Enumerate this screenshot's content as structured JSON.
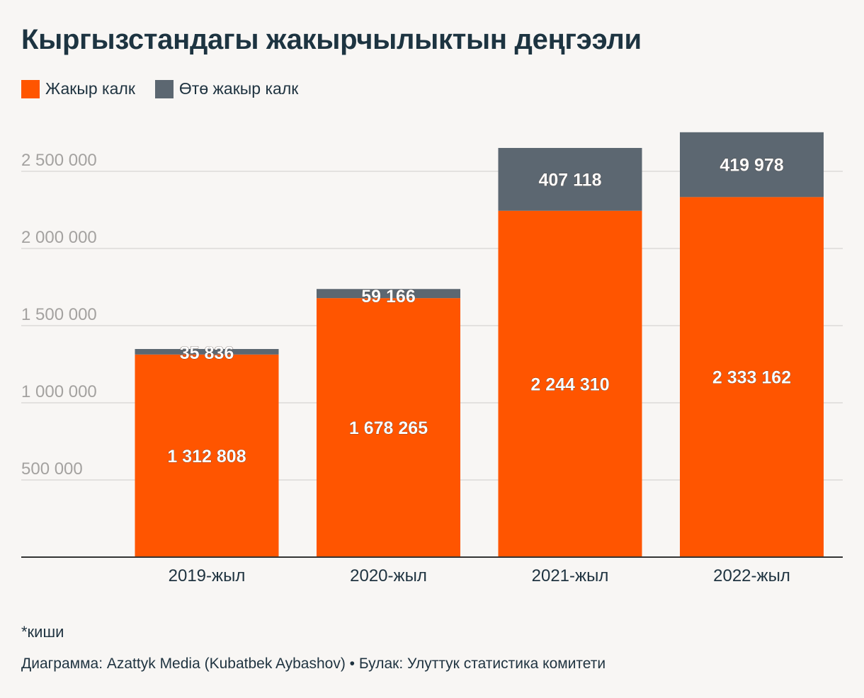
{
  "title": "Кыргызстандагы жакырчылыктын деңгээли",
  "legend": {
    "items": [
      {
        "label": "Жакыр калк",
        "color": "#ff5500"
      },
      {
        "label": "Өтө жакыр калк",
        "color": "#5c6771"
      }
    ]
  },
  "footnote": "*киши",
  "credit": "Диаграмма: Azattyk Media (Kubatbek Aybashov) • Булак: Улуттук статистика комитети",
  "chart_data": {
    "type": "bar",
    "stacked": true,
    "categories": [
      "2019-жыл",
      "2020-жыл",
      "2021-жыл",
      "2022-жыл"
    ],
    "series": [
      {
        "name": "Жакыр калк",
        "color": "#ff5500",
        "values": [
          1312808,
          1678265,
          2244310,
          2333162
        ],
        "labels": [
          "1 312 808",
          "1 678 265",
          "2 244 310",
          "2 333 162"
        ]
      },
      {
        "name": "Өтө жакыр калк",
        "color": "#5c6771",
        "values": [
          35836,
          59166,
          407118,
          419978
        ],
        "labels": [
          "35 836",
          "59 166",
          "407 118",
          "419 978"
        ]
      }
    ],
    "yticks": [
      500000,
      1000000,
      1500000,
      2000000,
      2500000
    ],
    "ytick_labels": [
      "500 000",
      "1 000 000",
      "1 500 000",
      "2 000 000",
      "2 500 000"
    ],
    "ylim": [
      0,
      2750000
    ],
    "grid": true,
    "title": "Кыргызстандагы жакырчылыктын деңгээли",
    "xlabel": "",
    "ylabel": ""
  }
}
